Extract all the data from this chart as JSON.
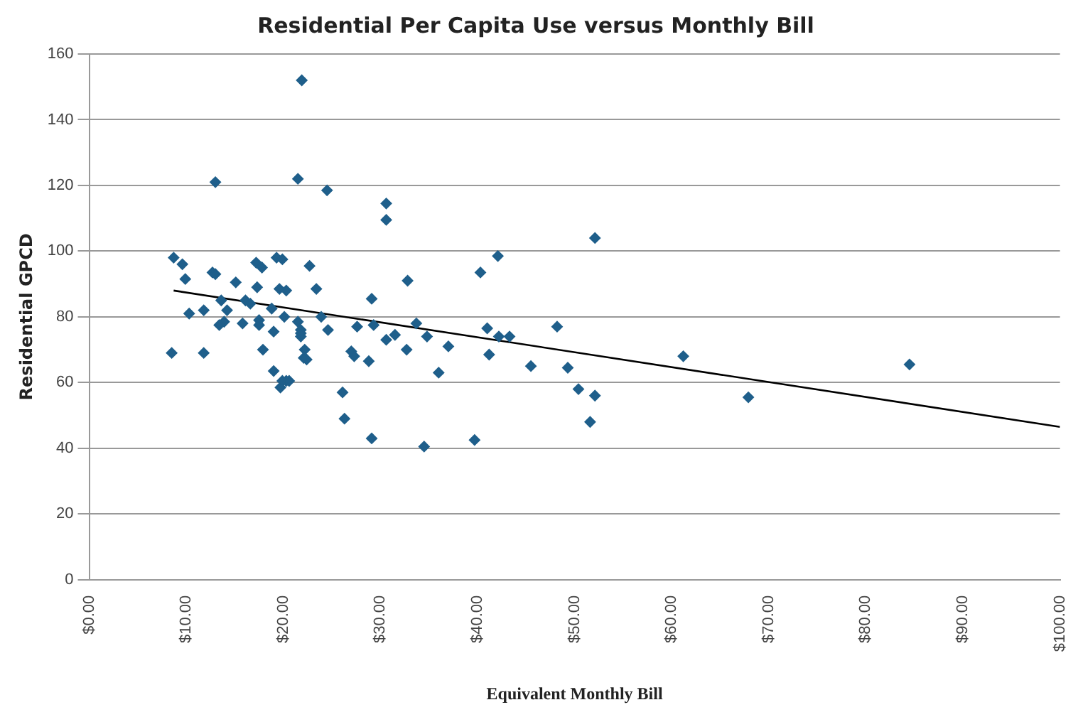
{
  "chart_data": {
    "type": "scatter",
    "title": "Residential Per Capita Use versus Monthly Bill",
    "xlabel": "Equivalent Monthly Bill",
    "ylabel": "Residential GPCD",
    "xlim": [
      0,
      100
    ],
    "ylim": [
      0,
      160
    ],
    "xticks": [
      {
        "value": 0,
        "label": "$0.00"
      },
      {
        "value": 10,
        "label": "$10.00"
      },
      {
        "value": 20,
        "label": "$20.00"
      },
      {
        "value": 30,
        "label": "$30.00"
      },
      {
        "value": 40,
        "label": "$40.00"
      },
      {
        "value": 50,
        "label": "$50.00"
      },
      {
        "value": 60,
        "label": "$60.00"
      },
      {
        "value": 70,
        "label": "$70.00"
      },
      {
        "value": 80,
        "label": "$80.00"
      },
      {
        "value": 90,
        "label": "$90.00"
      },
      {
        "value": 100,
        "label": "$100.00"
      }
    ],
    "yticks": [
      0,
      20,
      40,
      60,
      80,
      100,
      120,
      140,
      160
    ],
    "grid": "y",
    "legend": false,
    "marker": "diamond",
    "series": [
      {
        "color": "#1f5f8b",
        "x": [
          8.7,
          9.6,
          9.9,
          12.7,
          13.0,
          15.1,
          17.2,
          17.8,
          19.3,
          22.7,
          17.3,
          19.6,
          20.3,
          23.4,
          13.6,
          16.1,
          16.6,
          10.3,
          11.8,
          14.2,
          13.9,
          13.4,
          15.8,
          17.5,
          17.5,
          18.8,
          20.1,
          21.5,
          21.8,
          21.8,
          24.6,
          19.0,
          8.5,
          11.8,
          17.9,
          22.2,
          22.4,
          19.0,
          20.3,
          19.7,
          21.9,
          13.0,
          21.5,
          24.5,
          30.6,
          30.6,
          52.1,
          40.3,
          42.1,
          32.8,
          29.1,
          23.9,
          27.6,
          29.3,
          30.6,
          31.5,
          27.0,
          27.3,
          28.8,
          32.7,
          33.7,
          34.8,
          37.0,
          36.0,
          41.0,
          42.2,
          43.3,
          41.2,
          45.5,
          48.2,
          49.3,
          50.4,
          52.1,
          51.6,
          26.1,
          26.3,
          29.1,
          34.5,
          39.7,
          19.9,
          20.6,
          19.9,
          21.8,
          22.1,
          61.2,
          67.9,
          84.5
        ],
        "values": [
          98,
          96,
          91.5,
          93.5,
          93,
          90.5,
          96.5,
          95,
          98,
          95.5,
          89,
          88.5,
          88,
          88.5,
          85,
          85,
          84,
          81,
          82,
          82,
          78.5,
          77.5,
          78,
          79,
          77.5,
          82.5,
          80,
          78.5,
          76,
          74,
          76,
          75.5,
          69,
          69,
          70,
          70,
          67,
          63.5,
          60.5,
          58.5,
          152,
          121,
          122,
          118.5,
          114.5,
          109.5,
          104,
          93.5,
          98.5,
          91,
          85.5,
          80,
          77,
          77.5,
          73,
          74.5,
          69.5,
          68,
          66.5,
          70,
          78,
          74,
          71,
          63,
          76.5,
          74,
          74,
          68.5,
          65,
          77,
          64.5,
          58,
          56,
          48,
          57,
          49,
          43,
          40.5,
          42.5,
          60.5,
          60.5,
          97.5,
          75,
          67.5,
          68,
          55.5,
          65.5
        ]
      },
      {
        "type": "line",
        "color": "#000000",
        "marker": "none",
        "x": [
          8.7,
          100
        ],
        "values": [
          88,
          46.5
        ]
      }
    ]
  }
}
